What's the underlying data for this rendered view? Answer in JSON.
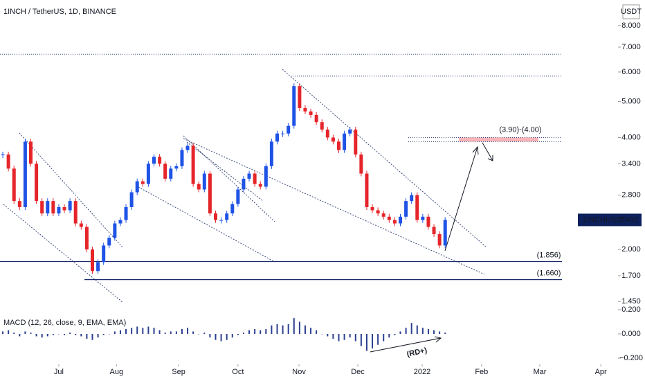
{
  "chart_data": [
    {
      "type": "candlestick",
      "title": "1INCH / TetherUS, 1D, BINANCE",
      "currency": "USDT",
      "symbol": "1INCHUSDT",
      "last": 2.402,
      "values": [
        3.6,
        3.3,
        2.7,
        2.6,
        3.9,
        3.4,
        2.7,
        2.5,
        2.7,
        2.5,
        2.6,
        2.55,
        2.7,
        2.35,
        2.3,
        2.0,
        1.75,
        1.85,
        2.05,
        2.15,
        2.35,
        2.4,
        2.6,
        2.85,
        3.05,
        3.0,
        3.4,
        3.55,
        3.4,
        3.1,
        3.3,
        3.35,
        3.7,
        3.8,
        3.0,
        2.9,
        3.2,
        2.5,
        2.4,
        2.4,
        2.5,
        2.65,
        2.9,
        3.1,
        3.2,
        3.0,
        2.95,
        3.35,
        3.9,
        4.1,
        4.1,
        4.3,
        5.5,
        4.8,
        4.7,
        4.6,
        4.4,
        4.2,
        4.0,
        3.9,
        3.7,
        4.1,
        4.2,
        3.6,
        3.2,
        2.6,
        2.55,
        2.5,
        2.45,
        2.4,
        2.35,
        2.45,
        2.7,
        2.8,
        2.4,
        2.45,
        2.3,
        2.2,
        2.05,
        2.402
      ],
      "up_color": "#1e53e5",
      "down_color": "#e5252a",
      "log_scale": true,
      "xlim": [
        0,
        110
      ],
      "xticks": [
        {
          "value": 10.5,
          "label": "Jul"
        },
        {
          "value": 20.8,
          "label": "Aug"
        },
        {
          "value": 31.9,
          "label": "Sep"
        },
        {
          "value": 42.5,
          "label": "Oct"
        },
        {
          "value": 53.4,
          "label": "Nov"
        },
        {
          "value": 63.9,
          "label": "Dec"
        },
        {
          "value": 75.4,
          "label": "2022"
        },
        {
          "value": 86.0,
          "label": "Feb"
        },
        {
          "value": 96.4,
          "label": "Mar"
        },
        {
          "value": 107.3,
          "label": "Apr"
        }
      ],
      "ylim": [
        1.39,
        9.37
      ],
      "yticks": [
        {
          "value": 1.45,
          "label": "1.450"
        },
        {
          "value": 1.7,
          "label": "1.700"
        },
        {
          "value": 2,
          "label": "2.000"
        },
        {
          "value": 2.8,
          "label": "2.800"
        },
        {
          "value": 3.4,
          "label": "3.400"
        },
        {
          "value": 4,
          "label": "4.000"
        },
        {
          "value": 5,
          "label": "5.000"
        },
        {
          "value": 6,
          "label": "6.000"
        },
        {
          "value": 7,
          "label": "7.000"
        },
        {
          "value": 8,
          "label": "8.000"
        }
      ],
      "levels": [
        {
          "value": 1.856,
          "label": "(1.856)"
        },
        {
          "value": 1.66,
          "label": "(1.660)"
        }
      ],
      "dotted_levels": [
        6.7,
        5.85
      ],
      "zone": {
        "low": 3.9,
        "high": 4.0,
        "label": "(3.90)-(4.00)"
      }
    },
    {
      "type": "histogram",
      "title": "MACD (12, 26, close, 9, EMA, EMA)",
      "annotation": "(RD+)",
      "color": "#2b3f8f",
      "values": [
        0.02,
        0.03,
        0.01,
        -0.02,
        0.02,
        0.01,
        -0.02,
        -0.03,
        -0.02,
        -0.01,
        0.0,
        -0.01,
        0.01,
        -0.01,
        -0.02,
        -0.04,
        -0.05,
        -0.03,
        -0.01,
        0.0,
        0.02,
        0.03,
        0.04,
        0.05,
        0.06,
        0.05,
        0.06,
        0.05,
        0.03,
        0.01,
        0.02,
        0.02,
        0.04,
        0.05,
        0.02,
        0.0,
        0.01,
        -0.03,
        -0.05,
        -0.06,
        -0.05,
        -0.03,
        -0.01,
        0.01,
        0.03,
        0.04,
        0.03,
        0.04,
        0.07,
        0.08,
        0.07,
        0.08,
        0.13,
        0.1,
        0.07,
        0.05,
        0.03,
        0.0,
        -0.02,
        -0.04,
        -0.06,
        -0.05,
        -0.03,
        -0.06,
        -0.1,
        -0.14,
        -0.12,
        -0.09,
        -0.06,
        -0.03,
        -0.01,
        0.02,
        0.05,
        0.09,
        0.07,
        0.05,
        0.04,
        0.03,
        0.02,
        0.01
      ],
      "ylim": [
        -0.274,
        0.211
      ],
      "yticks": [
        {
          "value": 0.2,
          "label": "0.200"
        },
        {
          "value": 0,
          "label": "0.000"
        },
        {
          "value": -0.2,
          "label": "−0.200"
        }
      ]
    }
  ]
}
